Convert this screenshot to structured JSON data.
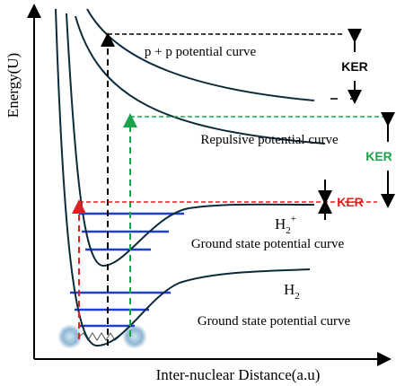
{
  "axes": {
    "y_label": "Energy(U)",
    "x_label": "Inter-nuclear Distance(a.u)"
  },
  "labels": {
    "pp_curve": "p + p potential curve",
    "repulsive_curve": "Repulsive potential curve",
    "h2plus": {
      "base": "H",
      "sub": "2",
      "sup": "+"
    },
    "h2plus_curve": "Ground state potential curve",
    "h2": {
      "base": "H",
      "sub": "2"
    },
    "h2_curve": "Ground state potential curve"
  },
  "ker": {
    "black": "KER",
    "green": "KER",
    "red": "KER"
  }
}
